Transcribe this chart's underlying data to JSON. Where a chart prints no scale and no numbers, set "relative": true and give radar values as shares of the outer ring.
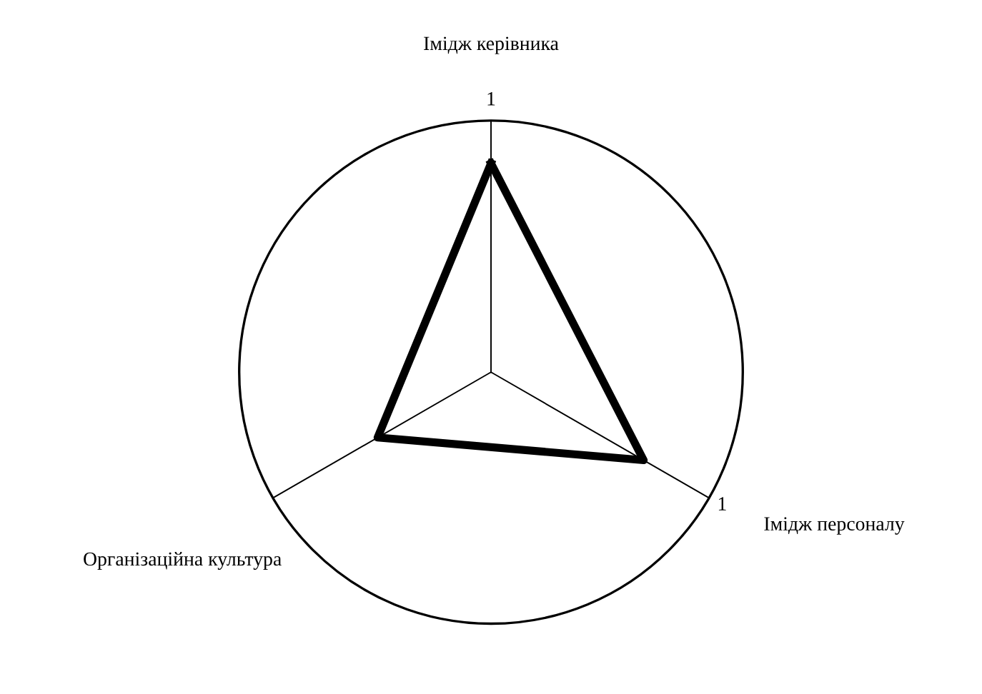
{
  "chart_data": {
    "type": "radar",
    "categories": [
      "Імідж керівника",
      "Імідж персоналу",
      "Організаційна культура"
    ],
    "series": [
      {
        "color": "#000000",
        "values": [
          0.83,
          0.7,
          0.52
        ]
      }
    ],
    "relative": true,
    "annotations": [
      "1",
      "1"
    ],
    "marker": "none",
    "line_style": "solid"
  }
}
